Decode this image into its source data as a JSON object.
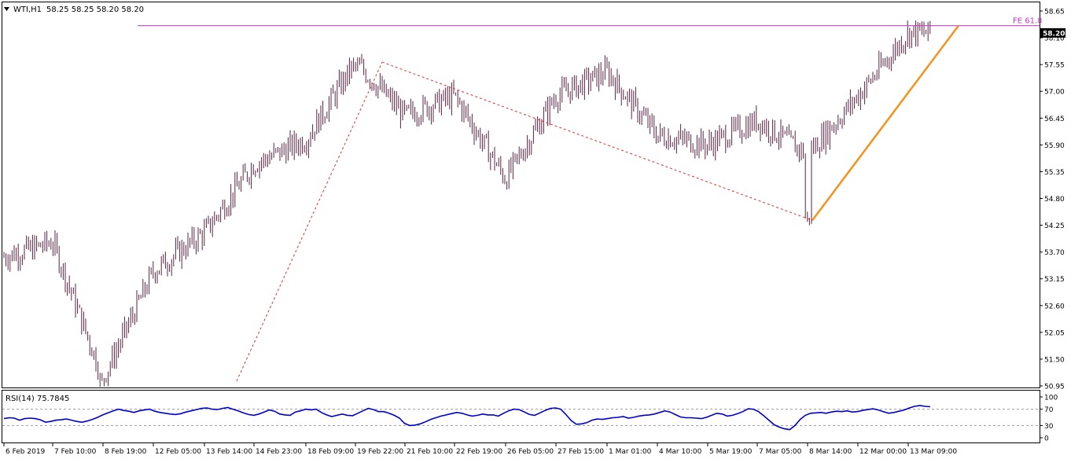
{
  "header": {
    "symbol_label": "WTI,H1",
    "ohlc_text": "58.25 58.25 58.20 58.20"
  },
  "rsi_panel": {
    "label": "RSI(14) 75.7845",
    "levels": [
      70,
      30
    ],
    "ticks": [
      "100",
      "70",
      "30",
      "0"
    ]
  },
  "annotations": {
    "fe_label": "FE 61.8",
    "fe_level": 58.35,
    "current_price": "58.20"
  },
  "colors": {
    "candle": "#5a2340",
    "fe_line": "#cc33cc",
    "fe_text": "#cc33cc",
    "dotted_line": "#e03030",
    "trend_line": "#f5921e",
    "rsi_line": "#0000cc",
    "level_line": "#999999",
    "price_box_bg": "#000000",
    "price_box_text": "#ffffff"
  },
  "chart_data": [
    {
      "type": "candlestick",
      "title": "WTI,H1",
      "ylim": [
        50.95,
        58.65
      ],
      "y_ticks": [
        "58.65",
        "58.10",
        "57.55",
        "57.00",
        "56.45",
        "55.90",
        "55.35",
        "54.80",
        "54.25",
        "53.70",
        "53.15",
        "52.60",
        "52.05",
        "51.50",
        "50.95"
      ],
      "x_ticks": [
        "6 Feb 2019",
        "7 Feb 10:00",
        "8 Feb 19:00",
        "12 Feb 05:00",
        "13 Feb 14:00",
        "14 Feb 23:00",
        "18 Feb 09:00",
        "19 Feb 22:00",
        "21 Feb 10:00",
        "22 Feb 19:00",
        "26 Feb 05:00",
        "27 Feb 15:00",
        "1 Mar 01:00",
        "4 Mar 10:00",
        "5 Mar 19:00",
        "7 Mar 05:00",
        "8 Mar 14:00",
        "12 Mar 00:00",
        "13 Mar 09:00"
      ],
      "approx_close_path": [
        {
          "at": "6 Feb 2019",
          "close": 53.6
        },
        {
          "at": "7 Feb 10:00",
          "close": 53.9
        },
        {
          "at": "8 Feb 19:00",
          "close": 51.1
        },
        {
          "at": "12 Feb 05:00",
          "close": 53.3
        },
        {
          "at": "13 Feb 14:00",
          "close": 54.1
        },
        {
          "at": "14 Feb 23:00",
          "close": 55.5
        },
        {
          "at": "18 Feb 09:00",
          "close": 56.0
        },
        {
          "at": "19 Feb 22:00",
          "close": 57.6
        },
        {
          "at": "21 Feb 10:00",
          "close": 56.5
        },
        {
          "at": "22 Feb 19:00",
          "close": 56.9
        },
        {
          "at": "26 Feb 05:00",
          "close": 55.2
        },
        {
          "at": "27 Feb 15:00",
          "close": 56.9
        },
        {
          "at": "1 Mar 01:00",
          "close": 57.4
        },
        {
          "at": "4 Mar 10:00",
          "close": 56.1
        },
        {
          "at": "5 Mar 19:00",
          "close": 55.9
        },
        {
          "at": "7 Mar 05:00",
          "close": 56.4
        },
        {
          "at": "8 Mar 14:00",
          "close": 55.7
        },
        {
          "at": "12 Mar 00:00",
          "close": 56.9
        },
        {
          "at": "13 Mar 09:00",
          "close": 58.2
        }
      ],
      "swing_points": [
        {
          "at": "8 Feb 19:00",
          "price": 51.05
        },
        {
          "at": "19 Feb 22:00",
          "price": 57.6
        },
        {
          "at": "8 Mar 14:00",
          "price": 54.35
        }
      ],
      "fibonacci_extension": {
        "label": "FE 61.8",
        "price": 58.35
      }
    },
    {
      "type": "line",
      "title": "RSI(14) 75.7845",
      "ylim": [
        0,
        100
      ],
      "levels": [
        70,
        30
      ],
      "series": [
        {
          "name": "RSI(14)",
          "values": [
            47,
            49,
            48,
            43,
            47,
            48,
            47,
            44,
            38,
            40,
            43,
            44,
            46,
            43,
            40,
            38,
            41,
            45,
            50,
            56,
            61,
            66,
            70,
            67,
            65,
            62,
            66,
            68,
            70,
            65,
            62,
            60,
            58,
            57,
            59,
            63,
            66,
            69,
            72,
            73,
            70,
            69,
            72,
            74,
            70,
            66,
            61,
            57,
            55,
            58,
            63,
            68,
            65,
            58,
            56,
            55,
            63,
            66,
            70,
            68,
            70,
            62,
            56,
            52,
            55,
            58,
            55,
            54,
            60,
            66,
            72,
            69,
            64,
            64,
            60,
            55,
            48,
            35,
            30,
            31,
            34,
            39,
            45,
            49,
            53,
            56,
            59,
            62,
            60,
            56,
            53,
            55,
            58,
            56,
            56,
            53,
            60,
            66,
            70,
            69,
            63,
            57,
            55,
            61,
            67,
            72,
            73,
            70,
            57,
            42,
            33,
            34,
            37,
            43,
            46,
            45,
            47,
            49,
            50,
            52,
            48,
            50,
            53,
            55,
            56,
            58,
            62,
            66,
            63,
            57,
            51,
            49,
            49,
            48,
            47,
            50,
            55,
            60,
            58,
            53,
            55,
            59,
            64,
            71,
            70,
            64,
            54,
            43,
            32,
            26,
            22,
            20,
            30,
            45,
            55,
            60,
            61,
            62,
            60,
            63,
            65,
            64,
            66,
            63,
            64,
            67,
            69,
            71,
            68,
            64,
            60,
            62,
            65,
            68,
            73,
            77,
            79,
            77,
            76
          ]
        }
      ]
    }
  ]
}
